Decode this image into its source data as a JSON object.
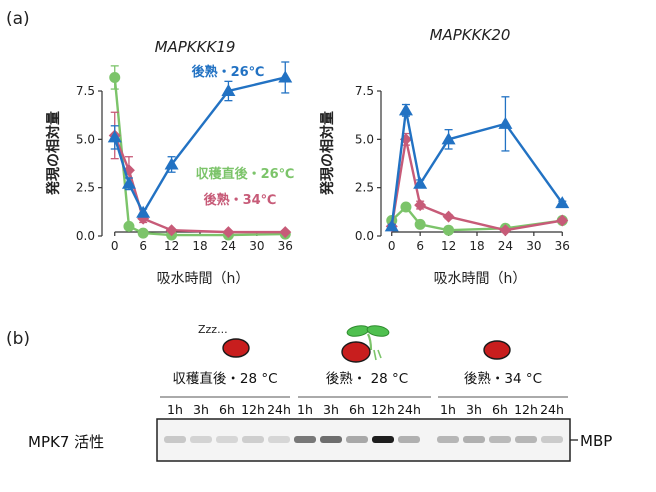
{
  "panel_a_label": "(a)",
  "panel_b_label": "(b)",
  "colors": {
    "blue": "#2272c3",
    "green": "#7cc46a",
    "red": "#c75b78",
    "axis": "#333333"
  },
  "chart_data": [
    {
      "type": "line",
      "title": "MAPKKK19",
      "xlabel": "吸水時間（h）",
      "ylabel": "発現の相対量",
      "xlim": [
        -1,
        37
      ],
      "ylim": [
        0,
        9
      ],
      "xticks": [
        0,
        6,
        12,
        18,
        24,
        30,
        36
      ],
      "yticks": [
        0.0,
        2.5,
        5.0,
        7.5
      ],
      "ytick_labels": [
        "0.0",
        "2.5",
        "5.0",
        "7.5"
      ],
      "series": [
        {
          "name": "後熟・26℃",
          "color_key": "blue",
          "marker": "triangle",
          "x": [
            0,
            3,
            6,
            12,
            24,
            36
          ],
          "y": [
            5.1,
            2.7,
            1.2,
            3.7,
            7.5,
            8.2
          ],
          "err": [
            0.6,
            0.3,
            0.2,
            0.4,
            0.5,
            0.8
          ]
        },
        {
          "name": "収穫直後・26℃",
          "color_key": "green",
          "marker": "circle",
          "x": [
            0,
            3,
            6,
            12,
            24,
            36
          ],
          "y": [
            8.2,
            0.5,
            0.15,
            0.05,
            0.05,
            0.1
          ],
          "err": [
            0.6,
            0.1,
            0.05,
            0.0,
            0.0,
            0.0
          ]
        },
        {
          "name": "後熟・34℃",
          "color_key": "red",
          "marker": "diamond",
          "x": [
            0,
            3,
            6,
            12,
            24,
            36
          ],
          "y": [
            5.2,
            3.4,
            0.9,
            0.3,
            0.2,
            0.2
          ],
          "err": [
            1.2,
            0.7,
            0.2,
            0.05,
            0.05,
            0.05
          ]
        }
      ],
      "annotations": [
        "後熟・26℃",
        "収穫直後・26℃",
        "後熟・34℃"
      ]
    },
    {
      "type": "line",
      "title": "MAPKKK20",
      "xlabel": "吸水時間（h）",
      "ylabel": "発現の相対量",
      "xlim": [
        -1,
        37
      ],
      "ylim": [
        0,
        9
      ],
      "xticks": [
        0,
        6,
        12,
        18,
        24,
        30,
        36
      ],
      "yticks": [
        0.0,
        2.5,
        5.0,
        7.5
      ],
      "ytick_labels": [
        "0.0",
        "2.5",
        "5.0",
        "7.5"
      ],
      "series": [
        {
          "name": "後熟・26℃",
          "color_key": "blue",
          "marker": "triangle",
          "x": [
            0,
            3,
            6,
            12,
            24,
            36
          ],
          "y": [
            0.5,
            6.5,
            2.7,
            5.0,
            5.8,
            1.7
          ],
          "err": [
            0.1,
            0.3,
            0.2,
            0.5,
            1.4,
            0.1
          ]
        },
        {
          "name": "収穫直後・26℃",
          "color_key": "green",
          "marker": "circle",
          "x": [
            0,
            3,
            6,
            12,
            24,
            36
          ],
          "y": [
            0.8,
            1.5,
            0.6,
            0.3,
            0.4,
            0.8
          ],
          "err": [
            0.1,
            0.1,
            0.1,
            0.05,
            0.05,
            0.1
          ]
        },
        {
          "name": "後熟・34℃",
          "color_key": "red",
          "marker": "diamond",
          "x": [
            0,
            3,
            6,
            12,
            24,
            36
          ],
          "y": [
            0.5,
            5.0,
            1.6,
            1.0,
            0.3,
            0.8
          ],
          "err": [
            0.1,
            0.3,
            0.2,
            0.1,
            0.05,
            0.1
          ]
        }
      ]
    }
  ],
  "panel_b": {
    "sleep_text": "Zzz...",
    "row_label": "MPK7 活性",
    "band_label": "MBP",
    "conditions": [
      {
        "label": "収穫直後・28 °C",
        "lanes": [
          "1h",
          "3h",
          "6h",
          "12h",
          "24h"
        ],
        "intensity": [
          0.22,
          0.14,
          0.12,
          0.18,
          0.12
        ]
      },
      {
        "label": "後熟・ 28 °C",
        "lanes": [
          "1h",
          "3h",
          "6h",
          "12h",
          "24h"
        ],
        "intensity": [
          0.62,
          0.66,
          0.4,
          0.95,
          0.36
        ]
      },
      {
        "label": "後熟・34 °C",
        "lanes": [
          "1h",
          "3h",
          "6h",
          "12h",
          "24h"
        ],
        "intensity": [
          0.32,
          0.36,
          0.3,
          0.32,
          0.2
        ]
      }
    ]
  }
}
